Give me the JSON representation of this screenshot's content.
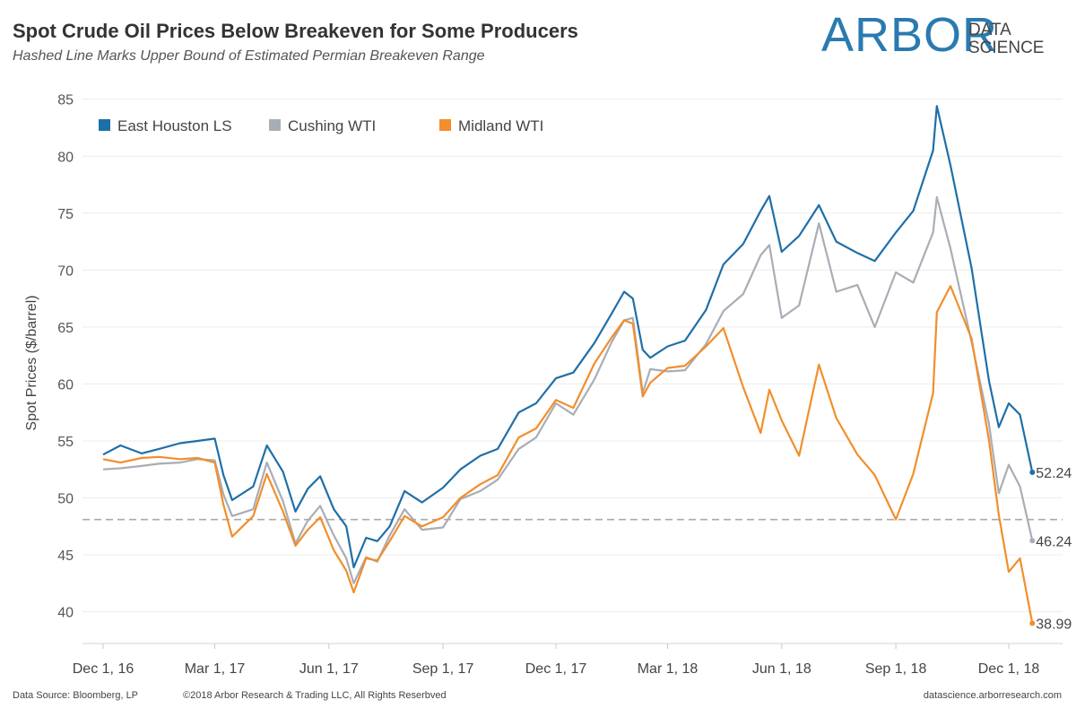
{
  "header": {
    "title": "Spot Crude Oil Prices Below Breakeven for Some Producers",
    "subtitle": "Hashed Line Marks Upper Bound of Estimated Permian Breakeven Range"
  },
  "logo": {
    "main": "Arbor",
    "line1": "DATA",
    "line2": "SCIENCE"
  },
  "footer": {
    "source": "Data Source: Bloomberg, LP",
    "copyright": "©2018 Arbor Research & Trading LLC,  All Rights Reserbved",
    "url": "datascience.arborresearch.com"
  },
  "chart_data": {
    "type": "line",
    "title": "Spot Crude Oil Prices Below Breakeven for Some Producers",
    "subtitle": "Hashed Line Marks Upper Bound of Estimated Permian Breakeven Range",
    "xlabel": "",
    "ylabel": "Spot Prices ($/barrel)",
    "ylim": [
      38,
      86
    ],
    "yticks": [
      40,
      45,
      50,
      55,
      60,
      65,
      70,
      75,
      80,
      85
    ],
    "xticks": [
      {
        "label": "Dec 1, 16",
        "date": "2016-12-01"
      },
      {
        "label": "Mar 1, 17",
        "date": "2017-03-01"
      },
      {
        "label": "Jun 1, 17",
        "date": "2017-06-01"
      },
      {
        "label": "Sep 1, 17",
        "date": "2017-09-01"
      },
      {
        "label": "Dec 1, 17",
        "date": "2017-12-01"
      },
      {
        "label": "Mar 1, 18",
        "date": "2018-03-01"
      },
      {
        "label": "Jun 1, 18",
        "date": "2018-06-01"
      },
      {
        "label": "Sep 1, 18",
        "date": "2018-09-01"
      },
      {
        "label": "Dec 1, 18",
        "date": "2018-12-01"
      }
    ],
    "grid": "horizontal",
    "legend_position": "top-left",
    "reference_line": {
      "value": 48.1,
      "style": "dashed",
      "color": "#aaaaaa"
    },
    "series": [
      {
        "name": "East Houston LS",
        "color": "#1f6fa8",
        "end_label": "52.24",
        "points": [
          [
            "2016-12-01",
            53.8
          ],
          [
            "2016-12-15",
            54.6
          ],
          [
            "2017-01-01",
            53.9
          ],
          [
            "2017-01-15",
            54.3
          ],
          [
            "2017-02-01",
            54.8
          ],
          [
            "2017-02-15",
            55.0
          ],
          [
            "2017-03-01",
            55.2
          ],
          [
            "2017-03-08",
            52.0
          ],
          [
            "2017-03-15",
            49.8
          ],
          [
            "2017-04-01",
            51.0
          ],
          [
            "2017-04-12",
            54.6
          ],
          [
            "2017-04-25",
            52.3
          ],
          [
            "2017-05-05",
            48.8
          ],
          [
            "2017-05-15",
            50.8
          ],
          [
            "2017-05-25",
            51.9
          ],
          [
            "2017-06-05",
            49.0
          ],
          [
            "2017-06-15",
            47.5
          ],
          [
            "2017-06-21",
            43.9
          ],
          [
            "2017-07-01",
            46.5
          ],
          [
            "2017-07-10",
            46.2
          ],
          [
            "2017-07-20",
            47.5
          ],
          [
            "2017-08-01",
            50.6
          ],
          [
            "2017-08-15",
            49.6
          ],
          [
            "2017-09-01",
            50.9
          ],
          [
            "2017-09-15",
            52.5
          ],
          [
            "2017-10-01",
            53.7
          ],
          [
            "2017-10-15",
            54.3
          ],
          [
            "2017-11-01",
            57.5
          ],
          [
            "2017-11-15",
            58.3
          ],
          [
            "2017-12-01",
            60.5
          ],
          [
            "2017-12-15",
            61.0
          ],
          [
            "2018-01-01",
            63.6
          ],
          [
            "2018-01-15",
            66.2
          ],
          [
            "2018-01-25",
            68.1
          ],
          [
            "2018-02-01",
            67.5
          ],
          [
            "2018-02-09",
            63.0
          ],
          [
            "2018-02-15",
            62.3
          ],
          [
            "2018-03-01",
            63.3
          ],
          [
            "2018-03-15",
            63.8
          ],
          [
            "2018-04-01",
            66.5
          ],
          [
            "2018-04-15",
            70.5
          ],
          [
            "2018-05-01",
            72.3
          ],
          [
            "2018-05-15",
            75.2
          ],
          [
            "2018-05-22",
            76.5
          ],
          [
            "2018-06-01",
            71.6
          ],
          [
            "2018-06-15",
            73.0
          ],
          [
            "2018-07-01",
            75.7
          ],
          [
            "2018-07-15",
            72.5
          ],
          [
            "2018-08-01",
            71.5
          ],
          [
            "2018-08-15",
            70.8
          ],
          [
            "2018-09-01",
            73.3
          ],
          [
            "2018-09-15",
            75.2
          ],
          [
            "2018-10-01",
            80.5
          ],
          [
            "2018-10-04",
            84.4
          ],
          [
            "2018-10-15",
            79.2
          ],
          [
            "2018-11-01",
            70.2
          ],
          [
            "2018-11-15",
            60.3
          ],
          [
            "2018-11-23",
            56.2
          ],
          [
            "2018-12-01",
            58.3
          ],
          [
            "2018-12-10",
            57.3
          ],
          [
            "2018-12-20",
            52.24
          ]
        ]
      },
      {
        "name": "Cushing WTI",
        "color": "#a9adb5",
        "end_label": "46.24",
        "points": [
          [
            "2016-12-01",
            52.5
          ],
          [
            "2016-12-15",
            52.6
          ],
          [
            "2017-01-01",
            52.8
          ],
          [
            "2017-01-15",
            53.0
          ],
          [
            "2017-02-01",
            53.1
          ],
          [
            "2017-02-15",
            53.4
          ],
          [
            "2017-03-01",
            53.3
          ],
          [
            "2017-03-08",
            50.3
          ],
          [
            "2017-03-15",
            48.4
          ],
          [
            "2017-04-01",
            49.0
          ],
          [
            "2017-04-12",
            53.1
          ],
          [
            "2017-04-25",
            49.7
          ],
          [
            "2017-05-05",
            46.0
          ],
          [
            "2017-05-15",
            48.0
          ],
          [
            "2017-05-25",
            49.3
          ],
          [
            "2017-06-05",
            46.7
          ],
          [
            "2017-06-15",
            44.7
          ],
          [
            "2017-06-21",
            42.5
          ],
          [
            "2017-07-01",
            44.8
          ],
          [
            "2017-07-10",
            44.4
          ],
          [
            "2017-07-20",
            46.7
          ],
          [
            "2017-08-01",
            49.0
          ],
          [
            "2017-08-15",
            47.2
          ],
          [
            "2017-09-01",
            47.4
          ],
          [
            "2017-09-15",
            49.9
          ],
          [
            "2017-10-01",
            50.6
          ],
          [
            "2017-10-15",
            51.6
          ],
          [
            "2017-11-01",
            54.3
          ],
          [
            "2017-11-15",
            55.3
          ],
          [
            "2017-12-01",
            58.3
          ],
          [
            "2017-12-15",
            57.3
          ],
          [
            "2018-01-01",
            60.4
          ],
          [
            "2018-01-15",
            63.7
          ],
          [
            "2018-01-25",
            65.6
          ],
          [
            "2018-02-01",
            65.8
          ],
          [
            "2018-02-09",
            59.2
          ],
          [
            "2018-02-15",
            61.3
          ],
          [
            "2018-03-01",
            61.1
          ],
          [
            "2018-03-15",
            61.2
          ],
          [
            "2018-04-01",
            63.5
          ],
          [
            "2018-04-15",
            66.4
          ],
          [
            "2018-05-01",
            67.9
          ],
          [
            "2018-05-15",
            71.3
          ],
          [
            "2018-05-22",
            72.2
          ],
          [
            "2018-06-01",
            65.8
          ],
          [
            "2018-06-15",
            66.9
          ],
          [
            "2018-07-01",
            74.1
          ],
          [
            "2018-07-15",
            68.1
          ],
          [
            "2018-08-01",
            68.7
          ],
          [
            "2018-08-15",
            65.0
          ],
          [
            "2018-09-01",
            69.8
          ],
          [
            "2018-09-15",
            68.9
          ],
          [
            "2018-10-01",
            73.3
          ],
          [
            "2018-10-04",
            76.4
          ],
          [
            "2018-10-15",
            71.9
          ],
          [
            "2018-11-01",
            63.7
          ],
          [
            "2018-11-15",
            56.5
          ],
          [
            "2018-11-23",
            50.4
          ],
          [
            "2018-12-01",
            52.9
          ],
          [
            "2018-12-10",
            51.0
          ],
          [
            "2018-12-20",
            46.24
          ]
        ]
      },
      {
        "name": "Midland WTI",
        "color": "#f28e2b",
        "end_label": "38.99",
        "points": [
          [
            "2016-12-01",
            53.4
          ],
          [
            "2016-12-15",
            53.1
          ],
          [
            "2017-01-01",
            53.5
          ],
          [
            "2017-01-15",
            53.6
          ],
          [
            "2017-02-01",
            53.4
          ],
          [
            "2017-02-15",
            53.5
          ],
          [
            "2017-03-01",
            53.1
          ],
          [
            "2017-03-08",
            49.4
          ],
          [
            "2017-03-15",
            46.6
          ],
          [
            "2017-04-01",
            48.4
          ],
          [
            "2017-04-12",
            52.1
          ],
          [
            "2017-04-25",
            48.8
          ],
          [
            "2017-05-05",
            45.8
          ],
          [
            "2017-05-15",
            47.2
          ],
          [
            "2017-05-25",
            48.3
          ],
          [
            "2017-06-05",
            45.4
          ],
          [
            "2017-06-15",
            43.6
          ],
          [
            "2017-06-21",
            41.7
          ],
          [
            "2017-07-01",
            44.7
          ],
          [
            "2017-07-10",
            44.5
          ],
          [
            "2017-07-20",
            46.2
          ],
          [
            "2017-08-01",
            48.4
          ],
          [
            "2017-08-15",
            47.5
          ],
          [
            "2017-09-01",
            48.3
          ],
          [
            "2017-09-15",
            50.0
          ],
          [
            "2017-10-01",
            51.2
          ],
          [
            "2017-10-15",
            52.0
          ],
          [
            "2017-11-01",
            55.3
          ],
          [
            "2017-11-15",
            56.1
          ],
          [
            "2017-12-01",
            58.6
          ],
          [
            "2017-12-15",
            57.9
          ],
          [
            "2018-01-01",
            61.8
          ],
          [
            "2018-01-15",
            64.1
          ],
          [
            "2018-01-25",
            65.6
          ],
          [
            "2018-02-01",
            65.3
          ],
          [
            "2018-02-09",
            58.9
          ],
          [
            "2018-02-15",
            60.1
          ],
          [
            "2018-03-01",
            61.4
          ],
          [
            "2018-03-15",
            61.6
          ],
          [
            "2018-04-01",
            63.3
          ],
          [
            "2018-04-15",
            64.9
          ],
          [
            "2018-05-01",
            59.7
          ],
          [
            "2018-05-15",
            55.7
          ],
          [
            "2018-05-22",
            59.5
          ],
          [
            "2018-06-01",
            56.8
          ],
          [
            "2018-06-15",
            53.7
          ],
          [
            "2018-07-01",
            61.7
          ],
          [
            "2018-07-15",
            57.0
          ],
          [
            "2018-08-01",
            53.8
          ],
          [
            "2018-08-15",
            52.0
          ],
          [
            "2018-09-01",
            48.1
          ],
          [
            "2018-09-15",
            52.1
          ],
          [
            "2018-10-01",
            59.2
          ],
          [
            "2018-10-04",
            66.3
          ],
          [
            "2018-10-15",
            68.6
          ],
          [
            "2018-11-01",
            64.0
          ],
          [
            "2018-11-15",
            55.1
          ],
          [
            "2018-11-23",
            48.5
          ],
          [
            "2018-12-01",
            43.5
          ],
          [
            "2018-12-10",
            44.7
          ],
          [
            "2018-12-20",
            38.99
          ]
        ]
      }
    ]
  }
}
